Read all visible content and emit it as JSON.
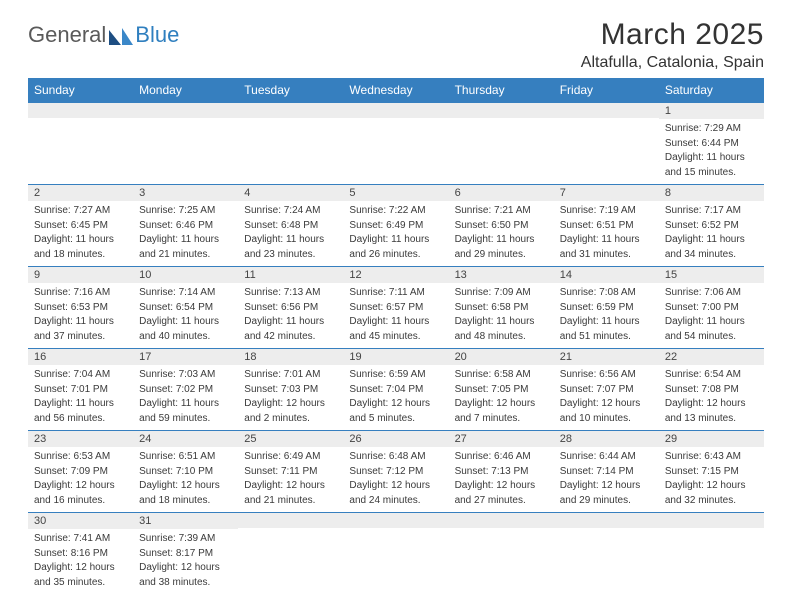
{
  "logo": {
    "part1": "General",
    "part2": "Blue"
  },
  "title": "March 2025",
  "location": "Altafulla, Catalonia, Spain",
  "colors": {
    "header_bg": "#367fbf",
    "header_text": "#ffffff",
    "daynum_bg": "#ededed",
    "border": "#367fbf",
    "text": "#333333"
  },
  "day_headers": [
    "Sunday",
    "Monday",
    "Tuesday",
    "Wednesday",
    "Thursday",
    "Friday",
    "Saturday"
  ],
  "weeks": [
    [
      {
        "n": "",
        "sr": "",
        "ss": "",
        "dl1": "",
        "dl2": ""
      },
      {
        "n": "",
        "sr": "",
        "ss": "",
        "dl1": "",
        "dl2": ""
      },
      {
        "n": "",
        "sr": "",
        "ss": "",
        "dl1": "",
        "dl2": ""
      },
      {
        "n": "",
        "sr": "",
        "ss": "",
        "dl1": "",
        "dl2": ""
      },
      {
        "n": "",
        "sr": "",
        "ss": "",
        "dl1": "",
        "dl2": ""
      },
      {
        "n": "",
        "sr": "",
        "ss": "",
        "dl1": "",
        "dl2": ""
      },
      {
        "n": "1",
        "sr": "Sunrise: 7:29 AM",
        "ss": "Sunset: 6:44 PM",
        "dl1": "Daylight: 11 hours",
        "dl2": "and 15 minutes."
      }
    ],
    [
      {
        "n": "2",
        "sr": "Sunrise: 7:27 AM",
        "ss": "Sunset: 6:45 PM",
        "dl1": "Daylight: 11 hours",
        "dl2": "and 18 minutes."
      },
      {
        "n": "3",
        "sr": "Sunrise: 7:25 AM",
        "ss": "Sunset: 6:46 PM",
        "dl1": "Daylight: 11 hours",
        "dl2": "and 21 minutes."
      },
      {
        "n": "4",
        "sr": "Sunrise: 7:24 AM",
        "ss": "Sunset: 6:48 PM",
        "dl1": "Daylight: 11 hours",
        "dl2": "and 23 minutes."
      },
      {
        "n": "5",
        "sr": "Sunrise: 7:22 AM",
        "ss": "Sunset: 6:49 PM",
        "dl1": "Daylight: 11 hours",
        "dl2": "and 26 minutes."
      },
      {
        "n": "6",
        "sr": "Sunrise: 7:21 AM",
        "ss": "Sunset: 6:50 PM",
        "dl1": "Daylight: 11 hours",
        "dl2": "and 29 minutes."
      },
      {
        "n": "7",
        "sr": "Sunrise: 7:19 AM",
        "ss": "Sunset: 6:51 PM",
        "dl1": "Daylight: 11 hours",
        "dl2": "and 31 minutes."
      },
      {
        "n": "8",
        "sr": "Sunrise: 7:17 AM",
        "ss": "Sunset: 6:52 PM",
        "dl1": "Daylight: 11 hours",
        "dl2": "and 34 minutes."
      }
    ],
    [
      {
        "n": "9",
        "sr": "Sunrise: 7:16 AM",
        "ss": "Sunset: 6:53 PM",
        "dl1": "Daylight: 11 hours",
        "dl2": "and 37 minutes."
      },
      {
        "n": "10",
        "sr": "Sunrise: 7:14 AM",
        "ss": "Sunset: 6:54 PM",
        "dl1": "Daylight: 11 hours",
        "dl2": "and 40 minutes."
      },
      {
        "n": "11",
        "sr": "Sunrise: 7:13 AM",
        "ss": "Sunset: 6:56 PM",
        "dl1": "Daylight: 11 hours",
        "dl2": "and 42 minutes."
      },
      {
        "n": "12",
        "sr": "Sunrise: 7:11 AM",
        "ss": "Sunset: 6:57 PM",
        "dl1": "Daylight: 11 hours",
        "dl2": "and 45 minutes."
      },
      {
        "n": "13",
        "sr": "Sunrise: 7:09 AM",
        "ss": "Sunset: 6:58 PM",
        "dl1": "Daylight: 11 hours",
        "dl2": "and 48 minutes."
      },
      {
        "n": "14",
        "sr": "Sunrise: 7:08 AM",
        "ss": "Sunset: 6:59 PM",
        "dl1": "Daylight: 11 hours",
        "dl2": "and 51 minutes."
      },
      {
        "n": "15",
        "sr": "Sunrise: 7:06 AM",
        "ss": "Sunset: 7:00 PM",
        "dl1": "Daylight: 11 hours",
        "dl2": "and 54 minutes."
      }
    ],
    [
      {
        "n": "16",
        "sr": "Sunrise: 7:04 AM",
        "ss": "Sunset: 7:01 PM",
        "dl1": "Daylight: 11 hours",
        "dl2": "and 56 minutes."
      },
      {
        "n": "17",
        "sr": "Sunrise: 7:03 AM",
        "ss": "Sunset: 7:02 PM",
        "dl1": "Daylight: 11 hours",
        "dl2": "and 59 minutes."
      },
      {
        "n": "18",
        "sr": "Sunrise: 7:01 AM",
        "ss": "Sunset: 7:03 PM",
        "dl1": "Daylight: 12 hours",
        "dl2": "and 2 minutes."
      },
      {
        "n": "19",
        "sr": "Sunrise: 6:59 AM",
        "ss": "Sunset: 7:04 PM",
        "dl1": "Daylight: 12 hours",
        "dl2": "and 5 minutes."
      },
      {
        "n": "20",
        "sr": "Sunrise: 6:58 AM",
        "ss": "Sunset: 7:05 PM",
        "dl1": "Daylight: 12 hours",
        "dl2": "and 7 minutes."
      },
      {
        "n": "21",
        "sr": "Sunrise: 6:56 AM",
        "ss": "Sunset: 7:07 PM",
        "dl1": "Daylight: 12 hours",
        "dl2": "and 10 minutes."
      },
      {
        "n": "22",
        "sr": "Sunrise: 6:54 AM",
        "ss": "Sunset: 7:08 PM",
        "dl1": "Daylight: 12 hours",
        "dl2": "and 13 minutes."
      }
    ],
    [
      {
        "n": "23",
        "sr": "Sunrise: 6:53 AM",
        "ss": "Sunset: 7:09 PM",
        "dl1": "Daylight: 12 hours",
        "dl2": "and 16 minutes."
      },
      {
        "n": "24",
        "sr": "Sunrise: 6:51 AM",
        "ss": "Sunset: 7:10 PM",
        "dl1": "Daylight: 12 hours",
        "dl2": "and 18 minutes."
      },
      {
        "n": "25",
        "sr": "Sunrise: 6:49 AM",
        "ss": "Sunset: 7:11 PM",
        "dl1": "Daylight: 12 hours",
        "dl2": "and 21 minutes."
      },
      {
        "n": "26",
        "sr": "Sunrise: 6:48 AM",
        "ss": "Sunset: 7:12 PM",
        "dl1": "Daylight: 12 hours",
        "dl2": "and 24 minutes."
      },
      {
        "n": "27",
        "sr": "Sunrise: 6:46 AM",
        "ss": "Sunset: 7:13 PM",
        "dl1": "Daylight: 12 hours",
        "dl2": "and 27 minutes."
      },
      {
        "n": "28",
        "sr": "Sunrise: 6:44 AM",
        "ss": "Sunset: 7:14 PM",
        "dl1": "Daylight: 12 hours",
        "dl2": "and 29 minutes."
      },
      {
        "n": "29",
        "sr": "Sunrise: 6:43 AM",
        "ss": "Sunset: 7:15 PM",
        "dl1": "Daylight: 12 hours",
        "dl2": "and 32 minutes."
      }
    ],
    [
      {
        "n": "30",
        "sr": "Sunrise: 7:41 AM",
        "ss": "Sunset: 8:16 PM",
        "dl1": "Daylight: 12 hours",
        "dl2": "and 35 minutes."
      },
      {
        "n": "31",
        "sr": "Sunrise: 7:39 AM",
        "ss": "Sunset: 8:17 PM",
        "dl1": "Daylight: 12 hours",
        "dl2": "and 38 minutes."
      },
      {
        "n": "",
        "sr": "",
        "ss": "",
        "dl1": "",
        "dl2": ""
      },
      {
        "n": "",
        "sr": "",
        "ss": "",
        "dl1": "",
        "dl2": ""
      },
      {
        "n": "",
        "sr": "",
        "ss": "",
        "dl1": "",
        "dl2": ""
      },
      {
        "n": "",
        "sr": "",
        "ss": "",
        "dl1": "",
        "dl2": ""
      },
      {
        "n": "",
        "sr": "",
        "ss": "",
        "dl1": "",
        "dl2": ""
      }
    ]
  ]
}
